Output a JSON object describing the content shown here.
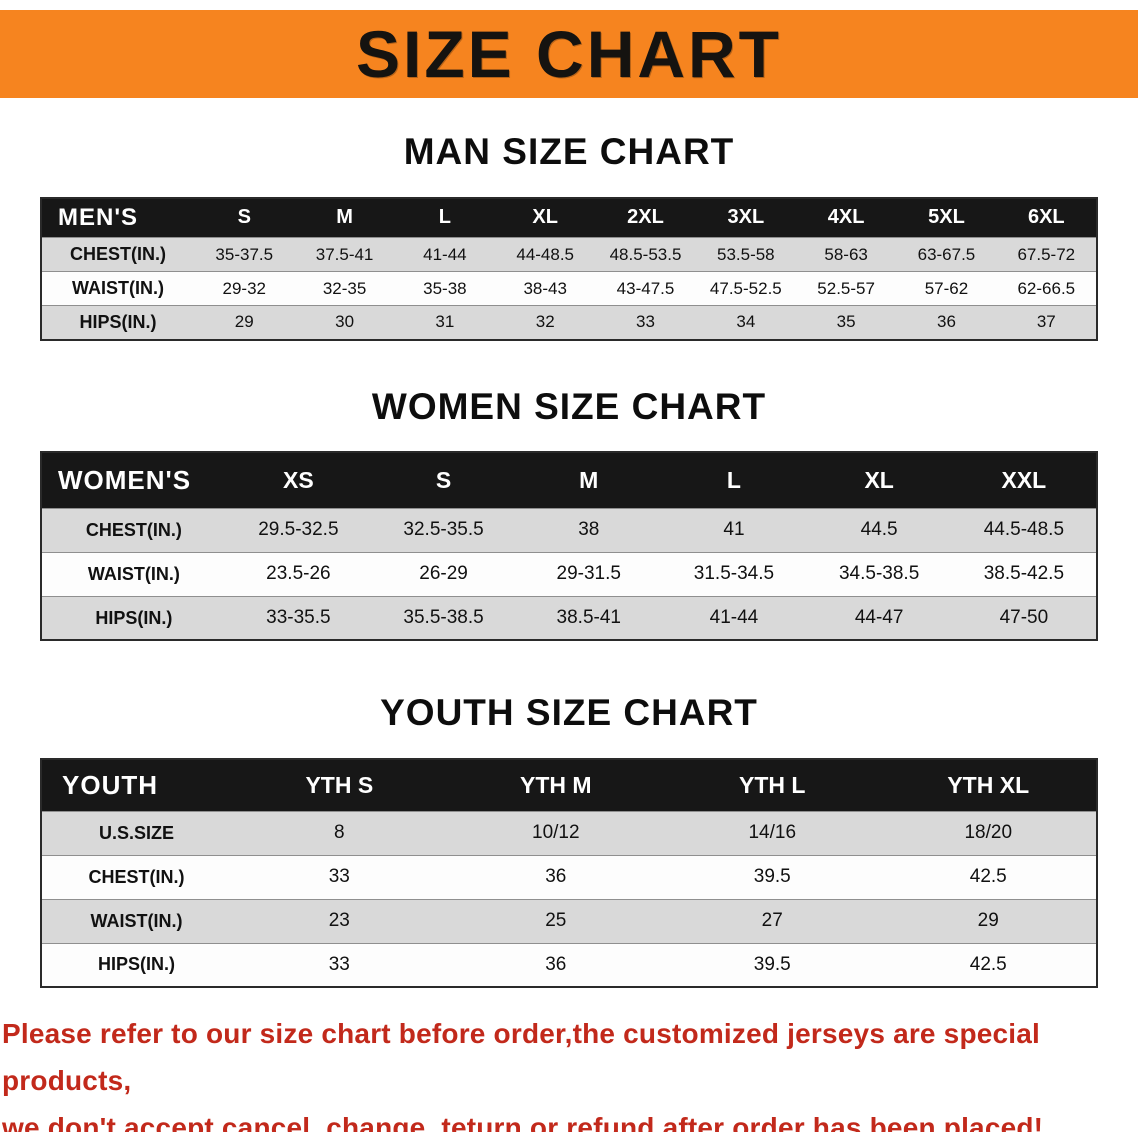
{
  "banner": {
    "title": "SIZE CHART"
  },
  "colors": {
    "banner_bg": "#f6841f",
    "header_bg": "#171717",
    "stripe_bg": "#d9d9d9",
    "footer_red": "#c2291b"
  },
  "footer": {
    "line1": "Please refer to our size chart before order,the customized jerseys are special products,",
    "line2": "we don't accept cancel, change, teturn or refund after order has been placed!"
  },
  "chart_data": [
    {
      "type": "table",
      "title": "MAN SIZE CHART",
      "corner_label": "MEN'S",
      "columns": [
        "S",
        "M",
        "L",
        "XL",
        "2XL",
        "3XL",
        "4XL",
        "5XL",
        "6XL"
      ],
      "rows": [
        {
          "label": "CHEST(IN.)",
          "values": [
            "35-37.5",
            "37.5-41",
            "41-44",
            "44-48.5",
            "48.5-53.5",
            "53.5-58",
            "58-63",
            "63-67.5",
            "67.5-72"
          ]
        },
        {
          "label": "WAIST(IN.)",
          "values": [
            "29-32",
            "32-35",
            "35-38",
            "38-43",
            "43-47.5",
            "47.5-52.5",
            "52.5-57",
            "57-62",
            "62-66.5"
          ]
        },
        {
          "label": "HIPS(IN.)",
          "values": [
            "29",
            "30",
            "31",
            "32",
            "33",
            "34",
            "35",
            "36",
            "37"
          ]
        }
      ]
    },
    {
      "type": "table",
      "title": "WOMEN SIZE CHART",
      "corner_label": "WOMEN'S",
      "columns": [
        "XS",
        "S",
        "M",
        "L",
        "XL",
        "XXL"
      ],
      "rows": [
        {
          "label": "CHEST(IN.)",
          "values": [
            "29.5-32.5",
            "32.5-35.5",
            "38",
            "41",
            "44.5",
            "44.5-48.5"
          ]
        },
        {
          "label": "WAIST(IN.)",
          "values": [
            "23.5-26",
            "26-29",
            "29-31.5",
            "31.5-34.5",
            "34.5-38.5",
            "38.5-42.5"
          ]
        },
        {
          "label": "HIPS(IN.)",
          "values": [
            "33-35.5",
            "35.5-38.5",
            "38.5-41",
            "41-44",
            "44-47",
            "47-50"
          ]
        }
      ]
    },
    {
      "type": "table",
      "title": "YOUTH SIZE CHART",
      "corner_label": "YOUTH",
      "columns": [
        "YTH S",
        "YTH M",
        "YTH L",
        "YTH XL"
      ],
      "rows": [
        {
          "label": "U.S.SIZE",
          "values": [
            "8",
            "10/12",
            "14/16",
            "18/20"
          ]
        },
        {
          "label": "CHEST(IN.)",
          "values": [
            "33",
            "36",
            "39.5",
            "42.5"
          ]
        },
        {
          "label": "WAIST(IN.)",
          "values": [
            "23",
            "25",
            "27",
            "29"
          ]
        },
        {
          "label": "HIPS(IN.)",
          "values": [
            "33",
            "36",
            "39.5",
            "42.5"
          ]
        }
      ]
    }
  ]
}
